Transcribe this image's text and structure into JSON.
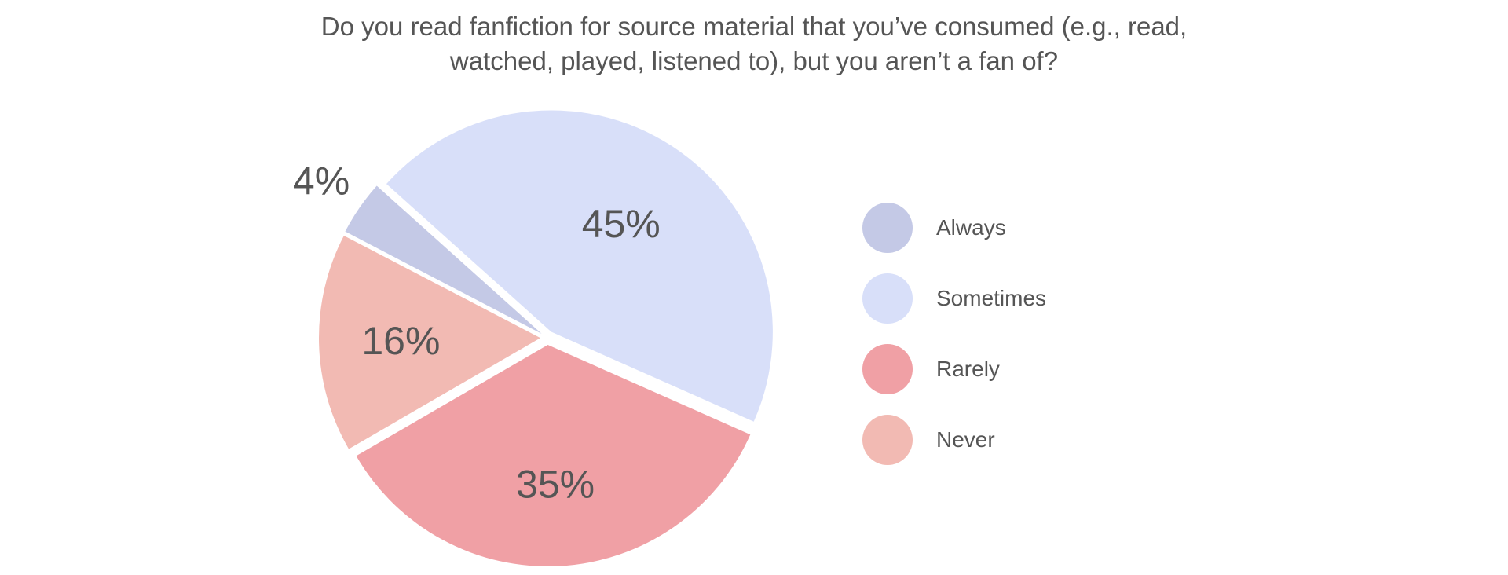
{
  "chart_data": {
    "type": "pie",
    "title_lines": [
      "Do you read fanfiction for source material that you’ve consumed (e.g., read,",
      "watched, played, listened to), but you aren’t a fan of?"
    ],
    "slices": [
      {
        "label": "Always",
        "value": 4,
        "value_label": "4%",
        "color": "#c4c9e6"
      },
      {
        "label": "Sometimes",
        "value": 45,
        "value_label": "45%",
        "color": "#d8dff9"
      },
      {
        "label": "Rarely",
        "value": 35,
        "value_label": "35%",
        "color": "#f0a0a5"
      },
      {
        "label": "Never",
        "value": 16,
        "value_label": "16%",
        "color": "#f2bab3"
      }
    ],
    "legend_position": "right",
    "exploded": true
  }
}
